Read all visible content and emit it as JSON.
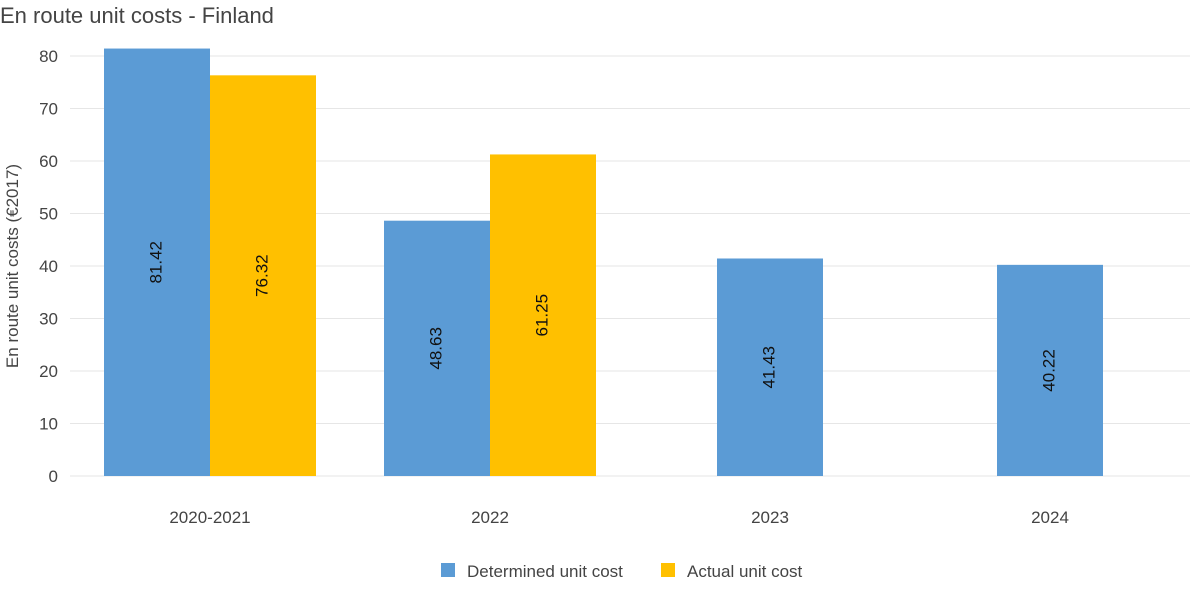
{
  "chart_data": {
    "type": "bar",
    "title": "En route unit costs - Finland",
    "ylabel": "En route unit costs (€2017)",
    "xlabel": "",
    "ylim": [
      0,
      80
    ],
    "yticks": [
      0,
      10,
      20,
      30,
      40,
      50,
      60,
      70,
      80
    ],
    "grid": true,
    "legend_position": "bottom",
    "categories": [
      "2020-2021",
      "2022",
      "2023",
      "2024"
    ],
    "series": [
      {
        "name": "Determined unit cost",
        "color": "#5B9BD5",
        "values": [
          81.42,
          48.63,
          41.43,
          40.22
        ],
        "labels": [
          "81.42",
          "48.63",
          "41.43",
          "40.22"
        ]
      },
      {
        "name": "Actual unit cost",
        "color": "#FFC000",
        "values": [
          76.32,
          61.25,
          null,
          null
        ],
        "labels": [
          "76.32",
          "61.25",
          null,
          null
        ]
      }
    ]
  }
}
